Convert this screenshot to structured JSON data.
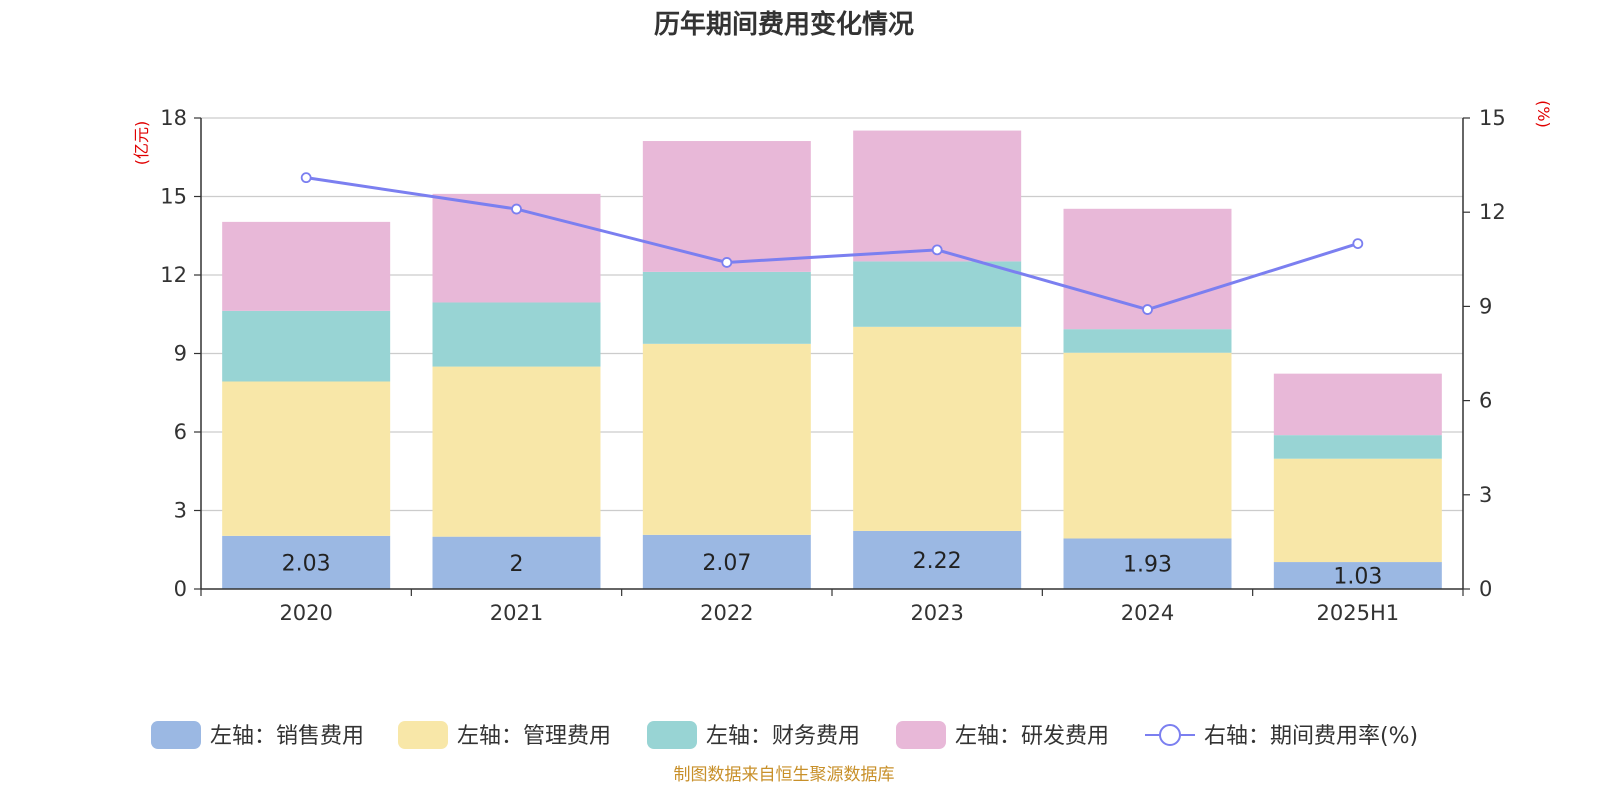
{
  "chart_data": {
    "type": "bar",
    "stacked": true,
    "title": "历年期间费用变化情况",
    "categories": [
      "2020",
      "2021",
      "2022",
      "2023",
      "2024",
      "2025H1"
    ],
    "left_axis": {
      "unit": "(亿元)",
      "ylim": [
        0,
        18
      ],
      "ticks": [
        "0",
        "3",
        "6",
        "9",
        "12",
        "15",
        "18"
      ]
    },
    "right_axis": {
      "unit": "(%)",
      "ylim": [
        0,
        15
      ],
      "ticks": [
        "0",
        "3",
        "6",
        "9",
        "12",
        "15"
      ]
    },
    "series": [
      {
        "name": "左轴：销售费用",
        "axis": "left",
        "type": "bar",
        "color": "#9bb8e3",
        "values": [
          2.03,
          2,
          2.07,
          2.22,
          1.93,
          1.03
        ],
        "labels": [
          "2.03",
          "2",
          "2.07",
          "2.22",
          "1.93",
          "1.03"
        ]
      },
      {
        "name": "左轴：管理费用",
        "axis": "left",
        "type": "bar",
        "color": "#f8e7a8",
        "values": [
          5.9,
          6.5,
          7.3,
          7.8,
          7.1,
          3.95
        ]
      },
      {
        "name": "左轴：财务费用",
        "axis": "left",
        "type": "bar",
        "color": "#98d4d4",
        "values": [
          2.7,
          2.45,
          2.75,
          2.5,
          0.9,
          0.9
        ]
      },
      {
        "name": "左轴：研发费用",
        "axis": "left",
        "type": "bar",
        "color": "#e8b8d8",
        "values": [
          3.4,
          4.15,
          5.0,
          5.0,
          4.6,
          2.35
        ]
      },
      {
        "name": "右轴：期间费用率(%)",
        "axis": "right",
        "type": "line",
        "color": "#7b7ff0",
        "values": [
          13.1,
          12.1,
          10.4,
          10.8,
          8.9,
          11.0
        ]
      }
    ],
    "grid": true,
    "legend_position": "bottom",
    "source": "制图数据来自恒生聚源数据库"
  }
}
